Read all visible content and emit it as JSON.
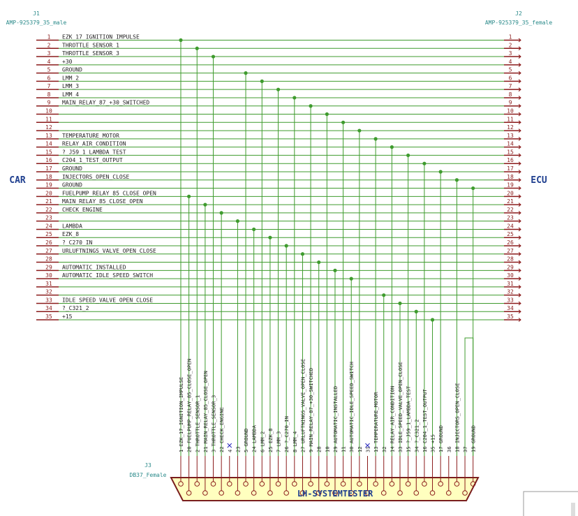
{
  "j1": {
    "ref": "J1",
    "value": "AMP-925379_35_male"
  },
  "j2": {
    "ref": "J2",
    "value": "AMP-925379_35_female"
  },
  "j3": {
    "ref": "J3",
    "value": "DB37_Female",
    "title": "LH-SYSTEMTESTER"
  },
  "left_label": "CAR",
  "right_label": "ECU",
  "colors": {
    "wire": "#3f9b2e",
    "pin": "#8a1a1a",
    "label": "#2a8a8a",
    "text": "#222222",
    "netlabel": "#1f3f8f",
    "connector_fill": "#ffffbf",
    "connector_stroke": "#7a1e1e",
    "noconnect": "#2222bb"
  },
  "pins": [
    {
      "n": "1",
      "name": "EZK_17_IGNITION_IMPULSE"
    },
    {
      "n": "2",
      "name": "THROTTLE_SENSOR_1"
    },
    {
      "n": "3",
      "name": "THROTTLE_SENSOR_3"
    },
    {
      "n": "4",
      "name": "+30"
    },
    {
      "n": "5",
      "name": "GROUND"
    },
    {
      "n": "6",
      "name": "LMM_2"
    },
    {
      "n": "7",
      "name": "LMM_3"
    },
    {
      "n": "8",
      "name": "LMM_4"
    },
    {
      "n": "9",
      "name": "MAIN_RELAY_87_+30_SWITCHED"
    },
    {
      "n": "10",
      "name": ""
    },
    {
      "n": "11",
      "name": ""
    },
    {
      "n": "12",
      "name": ""
    },
    {
      "n": "13",
      "name": "TEMPERATURE_MOTOR"
    },
    {
      "n": "14",
      "name": "RELAY_AIR_CONDITION"
    },
    {
      "n": "15",
      "name": "?_J59_1_LAMBDA_TEST"
    },
    {
      "n": "16",
      "name": "C204_1_TEST_OUTPUT"
    },
    {
      "n": "17",
      "name": "GROUND"
    },
    {
      "n": "18",
      "name": "INJECTORS_OPEN_CLOSE"
    },
    {
      "n": "19",
      "name": "GROUND"
    },
    {
      "n": "20",
      "name": "FUELPUMP_RELAY_85_CLOSE_OPEN"
    },
    {
      "n": "21",
      "name": "MAIN_RELAY_85_CLOSE_OPEN"
    },
    {
      "n": "22",
      "name": "CHECK_ENGINE"
    },
    {
      "n": "23",
      "name": ""
    },
    {
      "n": "24",
      "name": "LAMBDA"
    },
    {
      "n": "25",
      "name": "EZK_8"
    },
    {
      "n": "26",
      "name": "?_C270_IN"
    },
    {
      "n": "27",
      "name": "URLUFTNINGS_VALVE_OPEN_CLOSE"
    },
    {
      "n": "28",
      "name": ""
    },
    {
      "n": "29",
      "name": "AUTOMATIC_INSTALLED"
    },
    {
      "n": "30",
      "name": "AUTOMATIC_IDLE_SPEED_SWITCH"
    },
    {
      "n": "31",
      "name": ""
    },
    {
      "n": "32",
      "name": ""
    },
    {
      "n": "33",
      "name": "IDLE_SPEED_VALVE_OPEN_CLOSE"
    },
    {
      "n": "34",
      "name": "?_C321_2"
    },
    {
      "n": "35",
      "name": "+15"
    }
  ],
  "db37_pins": [
    {
      "label": "1 EZK_17_IGNITION_IMPULSE",
      "nc": false,
      "src": 1
    },
    {
      "label": "20 FUELPUMP_RELAY_85_CLOSE_OPEN",
      "nc": false,
      "src": 20
    },
    {
      "label": "2 THROTTLE_SENSOR_1",
      "nc": false,
      "src": 2
    },
    {
      "label": "21 MAIN_RELAY_85_CLOSE_OPEN",
      "nc": false,
      "src": 21
    },
    {
      "label": "3 THROTTLE_SENSOR_3",
      "nc": false,
      "src": 3
    },
    {
      "label": "22 CHECK_ENGINE",
      "nc": false,
      "src": 22
    },
    {
      "label": "4",
      "nc": true,
      "src": null
    },
    {
      "label": "23",
      "nc": false,
      "src": 23
    },
    {
      "label": "5 GROUND",
      "nc": false,
      "src": 5
    },
    {
      "label": "24 LAMBDA",
      "nc": false,
      "src": 24
    },
    {
      "label": "6 LMM_2",
      "nc": false,
      "src": 6
    },
    {
      "label": "25 EZK_8",
      "nc": false,
      "src": 25
    },
    {
      "label": "7 LMM_3",
      "nc": false,
      "src": 7
    },
    {
      "label": "26 ?_C270_IN",
      "nc": false,
      "src": 26
    },
    {
      "label": "8 LMM_4",
      "nc": false,
      "src": 8
    },
    {
      "label": "27 URLUFTNINGS_VALVE_OPEN_CLOSE",
      "nc": false,
      "src": 27
    },
    {
      "label": "9 MAIN_RELAY_87_+30_SWITCHED",
      "nc": false,
      "src": 9
    },
    {
      "label": "28",
      "nc": false,
      "src": 28
    },
    {
      "label": "10",
      "nc": false,
      "src": 10
    },
    {
      "label": "29 AUTOMATIC_INSTALLED",
      "nc": false,
      "src": 29
    },
    {
      "label": "11",
      "nc": false,
      "src": 11
    },
    {
      "label": "30 AUTOMATIC_IDLE_SPEED_SWITCH",
      "nc": false,
      "src": 30
    },
    {
      "label": "12",
      "nc": false,
      "src": 12
    },
    {
      "label": "31",
      "nc": true,
      "src": null
    },
    {
      "label": "13 TEMPERATURE_MOTOR",
      "nc": false,
      "src": 13
    },
    {
      "label": "32",
      "nc": false,
      "src": 32
    },
    {
      "label": "14 RELAY_AIR_CONDITION",
      "nc": false,
      "src": 14
    },
    {
      "label": "33 IDLE_SPEED_VALVE_OPEN_CLOSE",
      "nc": false,
      "src": 33
    },
    {
      "label": "15 ?_J59_1_LAMBDA_TEST",
      "nc": false,
      "src": 15
    },
    {
      "label": "34 ?_C321_2",
      "nc": false,
      "src": 34
    },
    {
      "label": "16 C204_1_TEST_OUTPUT",
      "nc": false,
      "src": 16
    },
    {
      "label": "35 +15",
      "nc": false,
      "src": 35
    },
    {
      "label": "17 GROUND",
      "nc": false,
      "src": 17
    },
    {
      "label": "36",
      "nc": false,
      "src": null
    },
    {
      "label": "18 INJECTORS_OPEN_CLOSE",
      "nc": false,
      "src": 18
    },
    {
      "label": "37",
      "nc": false,
      "src": null
    },
    {
      "label": "19 GROUND",
      "nc": false,
      "src": 19
    }
  ]
}
